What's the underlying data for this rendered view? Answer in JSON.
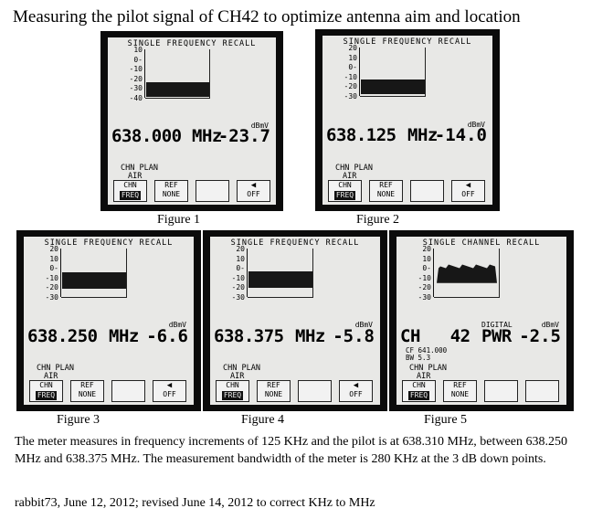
{
  "page": {
    "title": "Measuring the pilot signal of CH42 to optimize antenna aim and location",
    "paragraph": "The meter measures in frequency increments of 125 KHz and the pilot is at 638.310 MHz, between 638.250 MHz and 638.375 MHz. The measurement bandwidth of the meter is 280 KHz at the 3 dB down points.",
    "footer": "rabbit73, June 12, 2012; revised June 14, 2012 to correct KHz to MHz"
  },
  "colors": {
    "panel_bezel": "#0b0b0b",
    "screen_bg": "#e8e8e6",
    "segment_dark": "#171717"
  },
  "figures": [
    {
      "caption": "Figure 1",
      "header": "SINGLE FREQUENCY RECALL",
      "ticks": [
        "10",
        "0-",
        "-10",
        "-20",
        "-30",
        "-40"
      ],
      "level_fraction": 0.33,
      "unit": "dBmV",
      "readout_left": "638.000",
      "readout_mid": "MHz",
      "level": "-23.7",
      "plan1": "CHN PLAN",
      "plan2": "AIR",
      "btn1_top": "CHN",
      "btn1_bottom": "FREQ",
      "btn2_top": "REF",
      "btn2_bottom": "NONE",
      "btn4_icon": "speaker-icon",
      "btn4_bottom": "OFF"
    },
    {
      "caption": "Figure 2",
      "header": "SINGLE FREQUENCY RECALL",
      "ticks": [
        "20",
        "10",
        "0-",
        "-10",
        "-20",
        "-30"
      ],
      "level_fraction": 0.35,
      "unit": "dBmV",
      "readout_left": "638.125",
      "readout_mid": "MHz",
      "level": "-14.0",
      "plan1": "CHN PLAN",
      "plan2": "AIR",
      "btn1_top": "CHN",
      "btn1_bottom": "FREQ",
      "btn2_top": "REF",
      "btn2_bottom": "NONE",
      "btn4_icon": "speaker-icon",
      "btn4_bottom": "OFF"
    },
    {
      "caption": "Figure 3",
      "header": "SINGLE FREQUENCY RECALL",
      "ticks": [
        "20",
        "10",
        "0-",
        "-10",
        "-20",
        "-30"
      ],
      "level_fraction": 0.52,
      "unit": "dBmV",
      "readout_left": "638.250",
      "readout_mid": "MHz",
      "level": "-6.6",
      "plan1": "CHN PLAN",
      "plan2": "AIR",
      "btn1_top": "CHN",
      "btn1_bottom": "FREQ",
      "btn2_top": "REF",
      "btn2_bottom": "NONE",
      "btn4_icon": "speaker-icon",
      "btn4_bottom": "OFF"
    },
    {
      "caption": "Figure 4",
      "header": "SINGLE FREQUENCY RECALL",
      "ticks": [
        "20",
        "10",
        "0-",
        "-10",
        "-20",
        "-30"
      ],
      "level_fraction": 0.54,
      "unit": "dBmV",
      "readout_left": "638.375",
      "readout_mid": "MHz",
      "level": "-5.8",
      "plan1": "CHN PLAN",
      "plan2": "AIR",
      "btn1_top": "CHN",
      "btn1_bottom": "FREQ",
      "btn2_top": "REF",
      "btn2_bottom": "NONE",
      "btn4_icon": "speaker-icon",
      "btn4_bottom": "OFF"
    },
    {
      "caption": "Figure 5",
      "header": "SINGLE CHANNEL RECALL",
      "ticks": [
        "20",
        "10",
        "0-",
        "-10",
        "-20",
        "-30"
      ],
      "level_fraction": 0.56,
      "unit": "dBmV",
      "readout_left": "CH   42",
      "readout_mid": "PWR",
      "level": "-2.5",
      "digital": "DIGITAL",
      "cf": "CF  641.000",
      "bw": "BW    5.3",
      "plan1": "CHN PLAN",
      "plan2": "AIR",
      "btn1_top": "CHN",
      "btn1_bottom": "FREQ",
      "btn2_top": "REF",
      "btn2_bottom": "NONE",
      "btn4_icon": "",
      "btn4_bottom": ""
    }
  ]
}
